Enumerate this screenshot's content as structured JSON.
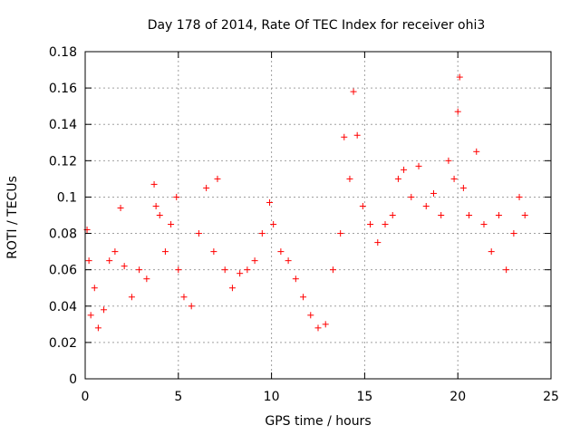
{
  "chart_data": {
    "type": "scatter",
    "title": "Day 178 of 2014, Rate Of TEC Index for receiver ohi3",
    "xlabel": "GPS time / hours",
    "ylabel": "ROTI / TECUs",
    "xlim": [
      0,
      25
    ],
    "ylim": [
      0,
      0.18
    ],
    "xticks": [
      0,
      5,
      10,
      15,
      20,
      25
    ],
    "xtick_labels": [
      "0",
      "5",
      "10",
      "15",
      "20",
      "25"
    ],
    "yticks": [
      0,
      0.02,
      0.04,
      0.06,
      0.08,
      0.1,
      0.12,
      0.14,
      0.16,
      0.18
    ],
    "ytick_labels": [
      "0",
      "0.02",
      "0.04",
      "0.06",
      "0.08",
      "0.1",
      "0.12",
      "0.14",
      "0.16",
      "0.18"
    ],
    "grid": true,
    "marker": "+",
    "marker_color": "#ff0000",
    "series": [
      {
        "name": "ROTI",
        "x": [
          0.1,
          0.2,
          0.3,
          0.5,
          0.7,
          1.0,
          1.3,
          1.6,
          1.9,
          2.1,
          2.5,
          2.9,
          3.3,
          3.7,
          3.8,
          4.0,
          4.3,
          4.6,
          4.9,
          5.0,
          5.3,
          5.7,
          6.1,
          6.5,
          6.9,
          7.1,
          7.5,
          7.9,
          8.3,
          8.7,
          9.1,
          9.5,
          9.9,
          10.1,
          10.5,
          10.9,
          11.3,
          11.7,
          12.1,
          12.5,
          12.9,
          13.3,
          13.7,
          13.9,
          14.2,
          14.4,
          14.6,
          14.9,
          15.3,
          15.7,
          16.1,
          16.5,
          16.8,
          17.1,
          17.5,
          17.9,
          18.3,
          18.7,
          19.1,
          19.5,
          19.8,
          20.0,
          20.1,
          20.3,
          20.6,
          21.0,
          21.4,
          21.8,
          22.2,
          22.6,
          23.0,
          23.3,
          23.6
        ],
        "y": [
          0.082,
          0.065,
          0.035,
          0.05,
          0.028,
          0.038,
          0.065,
          0.07,
          0.094,
          0.062,
          0.045,
          0.06,
          0.055,
          0.107,
          0.095,
          0.09,
          0.07,
          0.085,
          0.1,
          0.06,
          0.045,
          0.04,
          0.08,
          0.105,
          0.07,
          0.11,
          0.06,
          0.05,
          0.058,
          0.06,
          0.065,
          0.08,
          0.097,
          0.085,
          0.07,
          0.065,
          0.055,
          0.045,
          0.035,
          0.028,
          0.03,
          0.06,
          0.08,
          0.133,
          0.11,
          0.158,
          0.134,
          0.095,
          0.085,
          0.075,
          0.085,
          0.09,
          0.11,
          0.115,
          0.1,
          0.117,
          0.095,
          0.102,
          0.09,
          0.12,
          0.11,
          0.147,
          0.166,
          0.105,
          0.09,
          0.125,
          0.085,
          0.07,
          0.09,
          0.06,
          0.08,
          0.1,
          0.09
        ]
      }
    ]
  }
}
